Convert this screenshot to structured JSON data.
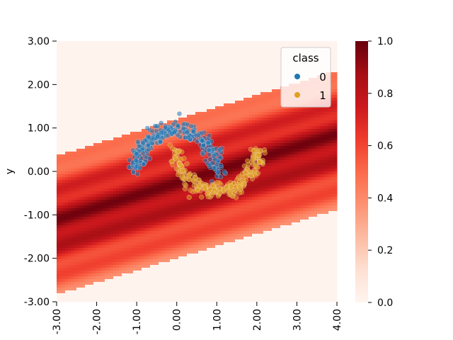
{
  "chart_data": {
    "type": "scatter",
    "title": "",
    "xlabel": "",
    "ylabel": "y",
    "xlim": [
      -3.0,
      4.0
    ],
    "ylim": [
      -3.0,
      3.0
    ],
    "x_ticks": [
      -3.0,
      -2.0,
      -1.0,
      0.0,
      1.0,
      2.0,
      3.0,
      4.0
    ],
    "x_tick_labels": [
      "-3.00",
      "-2.00",
      "-1.00",
      "0.00",
      "1.00",
      "2.00",
      "3.00",
      "4.00"
    ],
    "y_ticks": [
      -3.0,
      -2.0,
      -1.0,
      0.0,
      1.0,
      2.0,
      3.0
    ],
    "y_tick_labels": [
      "-3.00",
      "-2.00",
      "-1.00",
      "0.00",
      "1.00",
      "2.00",
      "3.00"
    ],
    "grid": false,
    "background": {
      "type": "heatmap",
      "description_colormap": "Reds",
      "band_slope": 0.28,
      "band_intercept": -0.4,
      "band_half_width": 1.6,
      "range": [
        0.0,
        1.0
      ]
    },
    "colorbar": {
      "ticks": [
        0.0,
        0.2,
        0.4,
        0.6,
        0.8,
        1.0
      ],
      "tick_labels": [
        "0.0",
        "0.2",
        "0.4",
        "0.6",
        "0.8",
        "1.0"
      ],
      "colormap": "Reds"
    },
    "legend": {
      "title": "class",
      "placement": "top-right",
      "entries": [
        {
          "label": "0",
          "color": "#1f77b4"
        },
        {
          "label": "1",
          "color": "#e0a020"
        }
      ]
    },
    "series": [
      {
        "name": "0",
        "color": "#1f77b4",
        "shape": "upper moon",
        "center": [
          0.0,
          0.0
        ],
        "radius": 1.0,
        "angle_range": [
          0,
          180
        ],
        "noise": 0.1
      },
      {
        "name": "1",
        "color": "#e0a020",
        "shape": "lower moon",
        "center": [
          1.0,
          0.5
        ],
        "radius": 1.0,
        "angle_range": [
          180,
          360
        ],
        "noise": 0.1
      }
    ]
  }
}
